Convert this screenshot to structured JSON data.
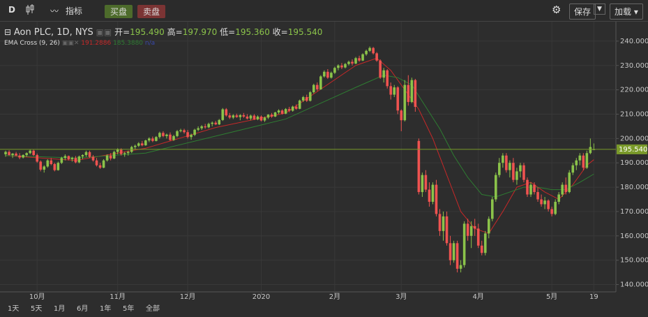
{
  "toolbar": {
    "interval": "D",
    "indicators": "指标",
    "buy": "买盘",
    "sell": "卖盘",
    "save": "保存",
    "load": "加载"
  },
  "header": {
    "symbol": "Aon PLC, 1D, NYS",
    "open": {
      "label": "开=",
      "value": "195.490"
    },
    "high": {
      "label": "高=",
      "value": "197.970"
    },
    "low": {
      "label": "低=",
      "value": "195.360"
    },
    "close": {
      "label": "收=",
      "value": "195.540"
    },
    "study": "EMA Cross (9, 26)",
    "study_values": [
      "191.2886",
      "185.3880",
      "n/a"
    ]
  },
  "ranges": [
    "1天",
    "5天",
    "1月",
    "6月",
    "1年",
    "5年",
    "全部"
  ],
  "chart_data": {
    "type": "candlestick",
    "up_color": "#8bc34a",
    "down_color": "#ef5350",
    "grid": true,
    "xlim": [
      -1.6,
      174.3
    ],
    "ylim": [
      137,
      248
    ],
    "xticks": [
      {
        "value": 9,
        "label": "10月"
      },
      {
        "value": 32,
        "label": "11月"
      },
      {
        "value": 52,
        "label": "12月"
      },
      {
        "value": 73,
        "label": "2020"
      },
      {
        "value": 94,
        "label": "2月"
      },
      {
        "value": 113,
        "label": "3月"
      },
      {
        "value": 135,
        "label": "4月"
      },
      {
        "value": 156,
        "label": "5月"
      },
      {
        "value": 168,
        "label": "19"
      }
    ],
    "yticks": [
      {
        "value": 140,
        "label": "140.000"
      },
      {
        "value": 150,
        "label": "150.000"
      },
      {
        "value": 160,
        "label": "160.000"
      },
      {
        "value": 170,
        "label": "170.000"
      },
      {
        "value": 180,
        "label": "180.000"
      },
      {
        "value": 190,
        "label": "190.000"
      },
      {
        "value": 200,
        "label": "200.000"
      },
      {
        "value": 210,
        "label": "210.000"
      },
      {
        "value": 220,
        "label": "220.000"
      },
      {
        "value": 230,
        "label": "230.000"
      },
      {
        "value": 240,
        "label": "240.000"
      }
    ],
    "last_price": 195.54,
    "last_price_label": "195.540",
    "last_price_color": "#7a9a2a",
    "ohlc": [
      [
        193.5,
        195,
        192.5,
        194.5
      ],
      [
        194.5,
        195.2,
        193,
        193.2
      ],
      [
        193.2,
        194,
        192,
        193.8
      ],
      [
        193.8,
        194.5,
        192.8,
        193
      ],
      [
        193,
        194,
        191.5,
        192.2
      ],
      [
        192.2,
        193.5,
        191.8,
        193.2
      ],
      [
        193.2,
        194.3,
        192.5,
        194
      ],
      [
        194,
        195.5,
        193.5,
        195
      ],
      [
        195,
        195.4,
        192.8,
        193.2
      ],
      [
        193.2,
        193.8,
        190,
        190.5
      ],
      [
        190.5,
        191,
        186.5,
        187.2
      ],
      [
        187.2,
        189,
        186,
        188.5
      ],
      [
        188.5,
        191.5,
        188,
        191
      ],
      [
        191,
        192,
        189,
        189.5
      ],
      [
        189.5,
        190,
        186.5,
        187
      ],
      [
        187,
        190.5,
        186.8,
        190
      ],
      [
        190,
        192.5,
        189.5,
        192
      ],
      [
        192,
        193.5,
        191,
        192.8
      ],
      [
        192.8,
        193,
        191,
        191.5
      ],
      [
        191.5,
        192.5,
        190.5,
        192
      ],
      [
        192,
        192.8,
        189.8,
        190.2
      ],
      [
        190.2,
        193,
        189.8,
        192.6
      ],
      [
        192.6,
        193.5,
        191.5,
        193.2
      ],
      [
        193.2,
        195,
        192.5,
        194.4
      ],
      [
        194.4,
        195,
        192,
        192.5
      ],
      [
        192.5,
        193.2,
        190.5,
        191
      ],
      [
        191,
        192,
        188.5,
        189
      ],
      [
        189,
        190,
        187.5,
        188
      ],
      [
        188,
        191.5,
        187.8,
        191
      ],
      [
        191,
        193.5,
        190.5,
        193
      ],
      [
        193,
        194,
        191,
        191.8
      ],
      [
        191.8,
        195,
        191.5,
        194.5
      ],
      [
        194.5,
        196,
        193.5,
        195.6
      ],
      [
        195.6,
        196,
        193,
        193.6
      ],
      [
        193.6,
        194.5,
        192.5,
        194
      ],
      [
        194,
        195,
        193,
        194.5
      ],
      [
        194.5,
        197,
        194,
        196.5
      ],
      [
        196.5,
        197.5,
        195.5,
        197
      ],
      [
        197,
        198.5,
        196.5,
        198
      ],
      [
        198,
        199,
        196.8,
        197.2
      ],
      [
        197.2,
        199.5,
        197,
        199.2
      ],
      [
        199.2,
        200.5,
        198.5,
        200
      ],
      [
        200,
        200.8,
        198.5,
        199
      ],
      [
        199,
        201,
        198.8,
        200.6
      ],
      [
        200.6,
        202.8,
        200,
        202.3
      ],
      [
        202.3,
        203,
        200.5,
        201
      ],
      [
        201,
        202,
        200,
        201.6
      ],
      [
        201.6,
        202.5,
        199,
        199.4
      ],
      [
        199.4,
        201.5,
        199,
        201
      ],
      [
        201,
        203.5,
        200.5,
        203
      ],
      [
        203,
        204,
        202.5,
        203.4
      ],
      [
        203.4,
        204,
        202,
        202.6
      ],
      [
        202.6,
        203.5,
        200,
        200.6
      ],
      [
        200.6,
        202,
        199.5,
        201.5
      ],
      [
        201.5,
        204,
        201,
        203.6
      ],
      [
        203.6,
        205,
        203,
        204.2
      ],
      [
        204.2,
        205.5,
        203.5,
        205
      ],
      [
        205,
        206,
        204,
        204.6
      ],
      [
        204.6,
        206.5,
        204.2,
        206
      ],
      [
        206,
        207,
        205,
        206.5
      ],
      [
        206.5,
        207.2,
        205.5,
        205.8
      ],
      [
        205.8,
        208,
        205.5,
        207.6
      ],
      [
        207.6,
        212.5,
        207.2,
        212
      ],
      [
        212,
        212.5,
        209,
        209.5
      ],
      [
        209.5,
        210.5,
        208,
        208.6
      ],
      [
        208.6,
        210,
        208,
        209.5
      ],
      [
        209.5,
        210.2,
        208.5,
        208.8
      ],
      [
        208.8,
        210,
        207.5,
        209.6
      ],
      [
        209.6,
        210.5,
        208.5,
        209
      ],
      [
        209,
        210,
        207.8,
        208.2
      ],
      [
        208.2,
        209.8,
        207.5,
        209.4
      ],
      [
        209.4,
        210,
        207.6,
        207.9
      ],
      [
        207.9,
        209.5,
        207.5,
        209
      ],
      [
        209,
        209.5,
        207,
        207.4
      ],
      [
        207.4,
        209,
        206.8,
        208.6
      ],
      [
        208.6,
        210,
        208,
        209.8
      ],
      [
        209.8,
        210.5,
        208.5,
        209
      ],
      [
        209,
        211,
        208.8,
        210.7
      ],
      [
        210.7,
        212,
        210,
        211.5
      ],
      [
        211.5,
        212,
        209.8,
        210.2
      ],
      [
        210.2,
        212.5,
        210,
        212.1
      ],
      [
        212.1,
        213,
        210.8,
        211.4
      ],
      [
        211.4,
        213.5,
        211,
        213.1
      ],
      [
        213.1,
        214,
        211.8,
        212.2
      ],
      [
        212.2,
        216,
        212,
        215.6
      ],
      [
        215.6,
        217.5,
        215,
        217
      ],
      [
        217,
        218,
        215,
        215.5
      ],
      [
        215.5,
        219.5,
        215.2,
        219
      ],
      [
        219,
        222.5,
        218.5,
        222
      ],
      [
        222,
        223,
        219.5,
        220.2
      ],
      [
        220.2,
        226,
        220,
        225.5
      ],
      [
        225.5,
        228,
        225,
        227.4
      ],
      [
        227.4,
        228.5,
        224.5,
        225
      ],
      [
        225,
        227.5,
        224.6,
        227
      ],
      [
        227,
        229.5,
        226.5,
        229
      ],
      [
        229,
        230.5,
        228,
        230
      ],
      [
        230,
        231,
        228.5,
        229.2
      ],
      [
        229.2,
        231,
        228.8,
        230.6
      ],
      [
        230.6,
        232,
        230,
        231.5
      ],
      [
        231.5,
        232.5,
        230,
        230.8
      ],
      [
        230.8,
        233.5,
        230.5,
        233
      ],
      [
        233,
        234,
        231.5,
        232
      ],
      [
        232,
        235,
        231.8,
        234.6
      ],
      [
        234.6,
        236.5,
        234,
        236
      ],
      [
        236,
        237.8,
        235.5,
        237.2
      ],
      [
        237.2,
        237.6,
        234.5,
        235
      ],
      [
        235,
        235.5,
        231.5,
        232
      ],
      [
        232,
        232.5,
        224.5,
        225
      ],
      [
        225,
        229,
        223,
        228
      ],
      [
        228,
        228.5,
        220.5,
        221.5
      ],
      [
        221.5,
        223,
        216,
        218
      ],
      [
        218,
        222,
        217,
        221
      ],
      [
        221,
        221.5,
        210,
        211.5
      ],
      [
        211.5,
        212,
        203,
        207.5
      ],
      [
        207.5,
        224,
        207,
        222
      ],
      [
        222,
        226,
        213.5,
        215
      ],
      [
        215,
        225,
        214.5,
        224
      ],
      [
        224,
        224.5,
        211,
        213
      ],
      [
        199,
        200,
        177,
        178
      ],
      [
        178,
        186,
        176,
        185
      ],
      [
        185,
        187,
        178,
        179
      ],
      [
        179,
        182,
        172,
        174
      ],
      [
        174,
        182,
        173,
        181
      ],
      [
        181,
        183,
        168,
        169
      ],
      [
        169,
        171,
        160,
        162
      ],
      [
        162,
        170,
        158,
        168
      ],
      [
        168,
        170,
        156,
        157
      ],
      [
        157,
        160,
        148,
        150
      ],
      [
        150,
        158,
        149,
        157
      ],
      [
        157,
        158,
        145,
        146.5
      ],
      [
        146.5,
        150,
        145,
        148
      ],
      [
        148,
        166,
        147,
        165
      ],
      [
        165,
        167,
        158,
        160
      ],
      [
        160,
        166,
        155,
        164
      ],
      [
        164,
        167,
        160,
        163
      ],
      [
        163,
        165,
        155,
        156
      ],
      [
        156,
        158,
        152,
        153
      ],
      [
        153,
        162,
        152,
        161
      ],
      [
        161,
        168,
        159,
        167
      ],
      [
        167,
        176,
        166,
        175
      ],
      [
        175,
        186,
        174,
        185
      ],
      [
        185,
        192,
        184,
        190
      ],
      [
        190,
        194,
        188,
        193
      ],
      [
        193,
        194,
        186,
        187
      ],
      [
        187,
        191,
        184,
        190
      ],
      [
        190,
        192,
        182,
        183
      ],
      [
        183,
        188,
        181,
        186.5
      ],
      [
        186.5,
        190,
        184,
        189
      ],
      [
        189,
        190,
        182,
        183
      ],
      [
        183,
        184,
        176,
        177
      ],
      [
        177,
        182,
        176,
        181
      ],
      [
        181,
        182,
        177,
        178
      ],
      [
        178,
        180,
        174,
        175
      ],
      [
        175,
        177,
        172,
        173
      ],
      [
        173,
        176,
        171,
        174.5
      ],
      [
        174.5,
        175,
        170,
        171
      ],
      [
        171,
        172,
        168,
        169
      ],
      [
        169,
        175,
        168.5,
        174
      ],
      [
        174,
        178,
        173,
        177
      ],
      [
        177,
        182,
        176,
        181
      ],
      [
        181,
        184,
        177,
        178
      ],
      [
        178,
        187,
        177.5,
        186
      ],
      [
        186,
        190,
        185,
        189
      ],
      [
        189,
        192,
        187,
        191
      ],
      [
        191,
        194,
        189,
        193
      ],
      [
        193,
        194,
        187,
        188
      ],
      [
        188,
        195,
        187.5,
        194
      ],
      [
        194,
        200,
        193.5,
        196.5
      ],
      [
        195.49,
        197.97,
        195.36,
        195.54
      ]
    ],
    "lines": [
      {
        "color": "#c62828",
        "x": [
          0,
          20,
          40,
          60,
          80,
          100,
          106,
          110,
          114,
          118,
          122,
          126,
          130,
          134,
          138,
          142,
          146,
          150,
          154,
          158,
          162,
          166,
          168
        ],
        "values": [
          193,
          191,
          196,
          204.5,
          210.5,
          230,
          233,
          228,
          220,
          212,
          200,
          185,
          170,
          163,
          161,
          170,
          180,
          182,
          178,
          175,
          181,
          189,
          191.3
        ]
      },
      {
        "color": "#2e7d32",
        "x": [
          0,
          20,
          40,
          60,
          80,
          100,
          108,
          112,
          116,
          120,
          124,
          128,
          132,
          136,
          140,
          144,
          148,
          152,
          156,
          160,
          164,
          168
        ],
        "values": [
          193,
          192,
          194,
          201,
          208,
          221,
          226,
          225,
          222,
          213,
          204,
          193,
          184,
          177,
          176,
          178,
          180,
          180,
          179,
          179,
          182,
          185.4
        ]
      }
    ]
  }
}
